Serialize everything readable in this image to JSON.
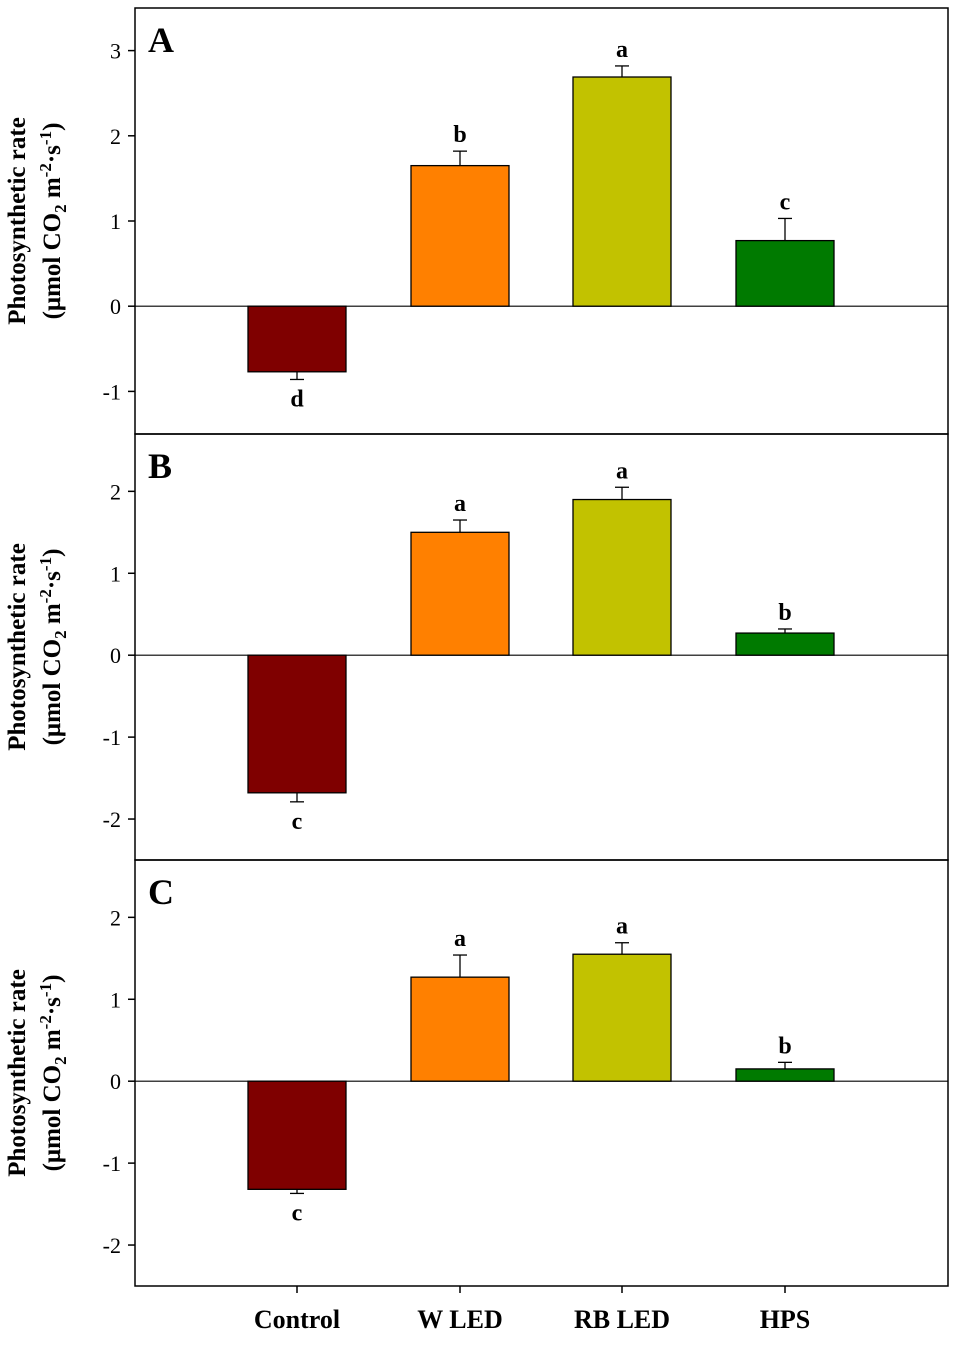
{
  "colors": {
    "Control": "#7f0000",
    "W LED": "#ff8000",
    "RB LED": "#c2c200",
    "HPS": "#007a00"
  },
  "chart_data": [
    {
      "type": "bar",
      "title": "A",
      "categories": [
        "Control",
        "W LED",
        "RB LED",
        "HPS"
      ],
      "values": [
        -0.77,
        1.65,
        2.69,
        0.77
      ],
      "errors": [
        0.09,
        0.17,
        0.13,
        0.26
      ],
      "significance": [
        "d",
        "b",
        "a",
        "c"
      ],
      "ylim": [
        -1.5,
        3.5
      ],
      "yticks": [
        -1,
        0,
        1,
        2,
        3
      ],
      "ylabel_line1": "Photosynthetic rate",
      "ylabel_line2": {
        "pre": "(μmol CO",
        "sub": "2",
        "mid": " m",
        "sup1": "-2",
        "dot": "·s",
        "sup2": "-1",
        "post": ")"
      }
    },
    {
      "type": "bar",
      "title": "B",
      "categories": [
        "Control",
        "W LED",
        "RB LED",
        "HPS"
      ],
      "values": [
        -1.68,
        1.5,
        1.9,
        0.27
      ],
      "errors": [
        0.11,
        0.15,
        0.15,
        0.05
      ],
      "significance": [
        "c",
        "a",
        "a",
        "b"
      ],
      "ylim": [
        -2.5,
        2.7
      ],
      "yticks": [
        -2,
        -1,
        0,
        1,
        2
      ],
      "ylabel_line1": "Photosynthetic rate",
      "ylabel_line2": {
        "pre": "(μmol CO",
        "sub": "2",
        "mid": " m",
        "sup1": "-2",
        "dot": "·s",
        "sup2": "-1",
        "post": ")"
      }
    },
    {
      "type": "bar",
      "title": "C",
      "categories": [
        "Control",
        "W LED",
        "RB LED",
        "HPS"
      ],
      "values": [
        -1.32,
        1.27,
        1.55,
        0.15
      ],
      "errors": [
        0.05,
        0.27,
        0.14,
        0.08
      ],
      "significance": [
        "c",
        "a",
        "a",
        "b"
      ],
      "ylim": [
        -2.5,
        2.7
      ],
      "yticks": [
        -2,
        -1,
        0,
        1,
        2
      ],
      "ylabel_line1": "Photosynthetic rate",
      "ylabel_line2": {
        "pre": "(μmol CO",
        "sub": "2",
        "mid": " m",
        "sup1": "-2",
        "dot": "·s",
        "sup2": "-1",
        "post": ")"
      }
    }
  ],
  "xaxis": {
    "categories": [
      "Control",
      "W LED",
      "RB LED",
      "HPS"
    ]
  }
}
